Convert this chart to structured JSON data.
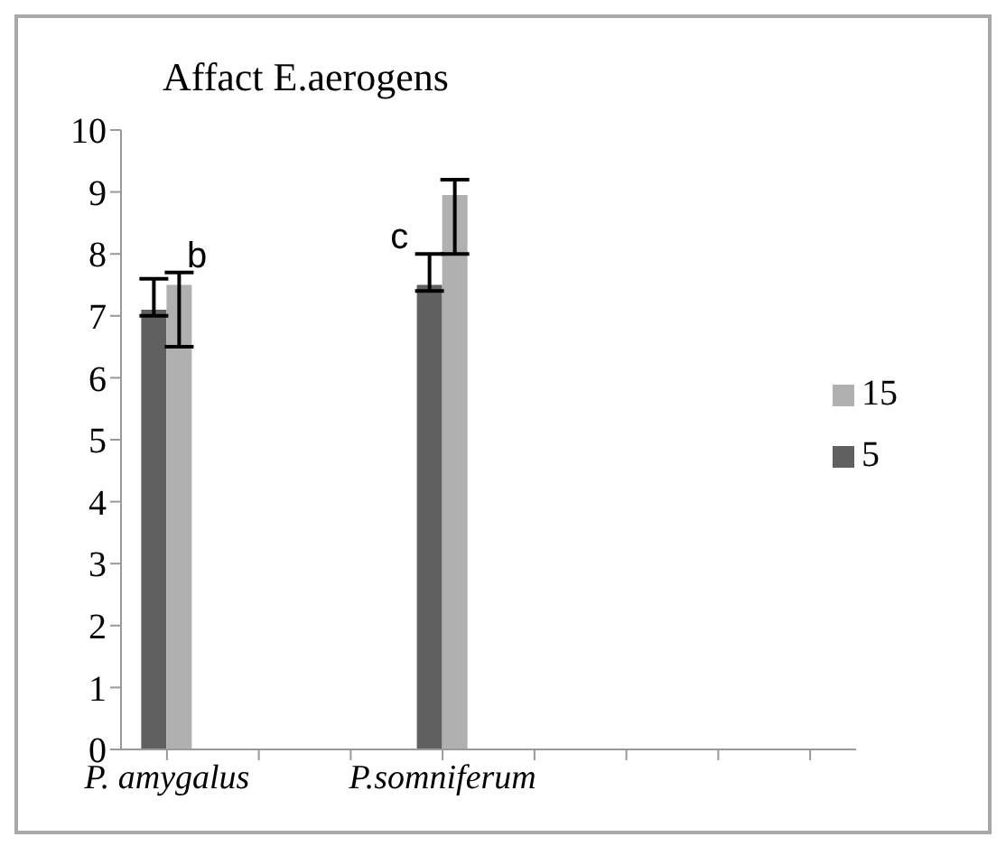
{
  "chart_data": {
    "type": "bar",
    "title": "Affact E.aerogens",
    "categories": [
      "P. amygalus",
      null,
      null,
      "P.somniferum",
      null,
      null,
      null,
      null
    ],
    "series": [
      {
        "name": "5",
        "color": "#606060",
        "values": [
          7.1,
          null,
          null,
          7.5,
          null,
          null,
          null,
          null
        ],
        "errors": [
          [
            7.0,
            7.6
          ],
          null,
          null,
          [
            7.4,
            8.0
          ],
          null,
          null,
          null,
          null
        ]
      },
      {
        "name": "15",
        "color": "#b0b0b0",
        "values": [
          7.5,
          null,
          null,
          8.95,
          null,
          null,
          null,
          null
        ],
        "errors": [
          [
            6.5,
            7.7
          ],
          null,
          null,
          [
            8.0,
            9.2
          ],
          null,
          null,
          null,
          null
        ]
      }
    ],
    "ylim": [
      0,
      10
    ],
    "yticks": [
      0,
      1,
      2,
      3,
      4,
      5,
      6,
      7,
      8,
      9,
      10
    ],
    "grid": false,
    "legend": "right",
    "annotations": [
      {
        "text": "b",
        "x": "P. amygalus",
        "y": 7.7
      },
      {
        "text": "c",
        "x": "P.somniferum",
        "y": 8.0
      }
    ]
  }
}
